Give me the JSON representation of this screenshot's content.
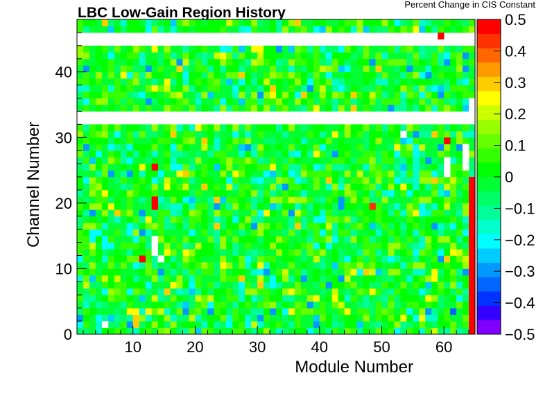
{
  "chart_data": {
    "type": "heatmap",
    "title": "LBC Low-Gain Region History",
    "xlabel": "Module Number",
    "ylabel": "Channel Number",
    "zlabel": "Percent Change in CIS Constant",
    "x_range": [
      1,
      65
    ],
    "y_range": [
      0,
      48
    ],
    "z_range": [
      -0.5,
      0.5
    ],
    "x_ticks": [
      10,
      20,
      30,
      40,
      50,
      60
    ],
    "x_tick_labels": [
      "10",
      "20",
      "30",
      "40",
      "50",
      "60"
    ],
    "y_ticks": [
      0,
      10,
      20,
      30,
      40
    ],
    "y_tick_labels": [
      "0",
      "10",
      "20",
      "30",
      "40"
    ],
    "z_ticks": [
      -0.5,
      -0.4,
      -0.3,
      -0.2,
      -0.1,
      0,
      0.1,
      0.2,
      0.3,
      0.4,
      0.5
    ],
    "z_tick_labels": [
      "−0.5",
      "−0.4",
      "−0.3",
      "−0.2",
      "−0.1",
      "0",
      "0.1",
      "0.2",
      "0.3",
      "0.4",
      "0.5"
    ],
    "palette": [
      "#7f00ff",
      "#3300ff",
      "#0033ff",
      "#0066ff",
      "#0099ff",
      "#00ccff",
      "#00ffff",
      "#00ffcc",
      "#00ff99",
      "#00ff66",
      "#00ff33",
      "#00ff00",
      "#33ff00",
      "#66ff00",
      "#99ff00",
      "#ccff00",
      "#ffff00",
      "#ffcc00",
      "#ff9900",
      "#ff6600",
      "#ff3300",
      "#ff0000"
    ],
    "empty_channel_rows": [
      32,
      33,
      44,
      45
    ],
    "outlier_cells": [
      {
        "module": 64,
        "channel_min": 0,
        "channel_max": 24,
        "value": 0.5
      },
      {
        "module": 13,
        "channel_min": 12,
        "channel_max": 15,
        "value": null
      },
      {
        "module": 63,
        "channel_min": 25,
        "channel_max": 29,
        "value": null
      },
      {
        "module": 60,
        "channel_min": 24,
        "channel_max": 27,
        "value": null
      },
      {
        "module": 55,
        "channel_min": 22,
        "channel_max": 27,
        "value": -0.15
      },
      {
        "module": 13,
        "channel_min": 19,
        "channel_max": 21,
        "value": 0.5
      },
      {
        "module": 13,
        "channel_min": 25,
        "channel_max": 26,
        "value": 0.5
      },
      {
        "module": 48,
        "channel_min": 19,
        "channel_max": 20,
        "value": 0.45
      },
      {
        "module": 60,
        "channel_min": 29,
        "channel_max": 30,
        "value": 0.5
      },
      {
        "module": 49,
        "channel_min": 31,
        "channel_max": 32,
        "value": 0.05
      },
      {
        "module": 59,
        "channel_min": 45,
        "channel_max": 46,
        "value": 0.5
      },
      {
        "module": 11,
        "channel_min": 11,
        "channel_max": 12,
        "value": 0.5
      },
      {
        "module": 14,
        "channel_min": 11,
        "channel_max": 12,
        "value": null
      },
      {
        "module": 5,
        "channel_min": 1,
        "channel_max": 2,
        "value": null
      },
      {
        "module": 64,
        "channel_min": 34,
        "channel_max": 36,
        "value": null
      },
      {
        "module": 53,
        "channel_min": 30,
        "channel_max": 31,
        "value": null
      }
    ],
    "cell_values_description": "Per-bin values are mostly near zero (green), with scattered bins between -0.3 and +0.3."
  }
}
